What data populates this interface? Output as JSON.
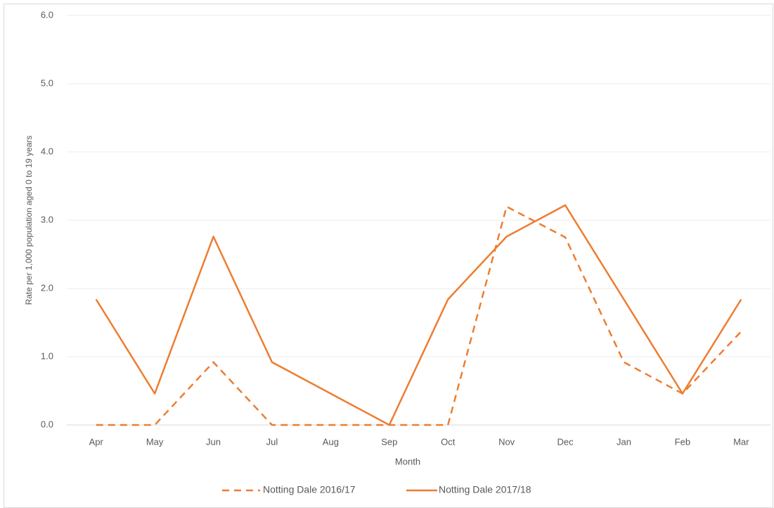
{
  "chart_data": {
    "type": "line",
    "x_label": "Month",
    "y_label": "Rate per 1,000 population aged 0 to 19 years",
    "categories": [
      "Apr",
      "May",
      "Jun",
      "Jul",
      "Aug",
      "Sep",
      "Oct",
      "Nov",
      "Dec",
      "Jan",
      "Feb",
      "Mar"
    ],
    "series": [
      {
        "name": "Notting Dale 2016/17",
        "color": "#ed7d31",
        "dashed": true,
        "values": [
          0,
          0,
          0.92,
          0,
          0,
          0,
          0,
          3.2,
          2.75,
          0.92,
          0.46,
          1.37
        ]
      },
      {
        "name": "Notting Dale 2017/18",
        "color": "#ed7d31",
        "dashed": false,
        "values": [
          1.84,
          0.46,
          2.76,
          0.92,
          0.46,
          0,
          1.84,
          2.76,
          3.22,
          1.84,
          0.46,
          1.84
        ]
      }
    ],
    "ylim": [
      0,
      6
    ],
    "yticks": [
      {
        "value": 0,
        "label": "0.0"
      },
      {
        "value": 1,
        "label": "1.0"
      },
      {
        "value": 2,
        "label": "2.0"
      },
      {
        "value": 3,
        "label": "3.0"
      },
      {
        "value": 4,
        "label": "4.0"
      },
      {
        "value": 5,
        "label": "5.0"
      },
      {
        "value": 6,
        "label": "6.0"
      }
    ],
    "grid": true,
    "legend": "bottom"
  }
}
